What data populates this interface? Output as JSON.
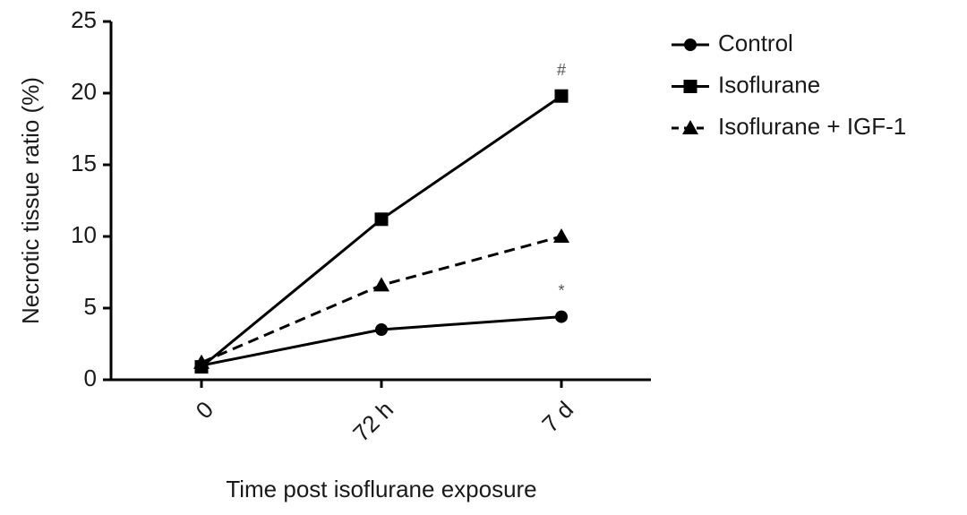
{
  "chart_data": {
    "type": "line",
    "y_label": "Necrotic tissue ratio (%)",
    "x_label": "Time post isoflurane exposure",
    "categories": [
      "0",
      "72 h",
      "7 d"
    ],
    "series": [
      {
        "name": "Control",
        "color": "#000000",
        "marker": "circle",
        "dash": "solid",
        "values": [
          1.0,
          3.5,
          4.4
        ]
      },
      {
        "name": "Isoflurane",
        "color": "#000000",
        "marker": "square",
        "dash": "solid",
        "values": [
          0.9,
          11.2,
          19.8
        ]
      },
      {
        "name": "Isoflurane + IGF-1",
        "color": "#000000",
        "marker": "triangle",
        "dash": "dashed",
        "values": [
          1.2,
          6.6,
          10.0
        ]
      }
    ],
    "annotations": [
      {
        "text": "#",
        "series": "Isoflurane",
        "x": "7 d"
      },
      {
        "text": "*",
        "series": "Control",
        "x": "7 d"
      }
    ],
    "ylim": [
      0,
      25
    ],
    "yticks": [
      0,
      5,
      10,
      15,
      20,
      25
    ],
    "legend": "upper right",
    "grid": false
  }
}
